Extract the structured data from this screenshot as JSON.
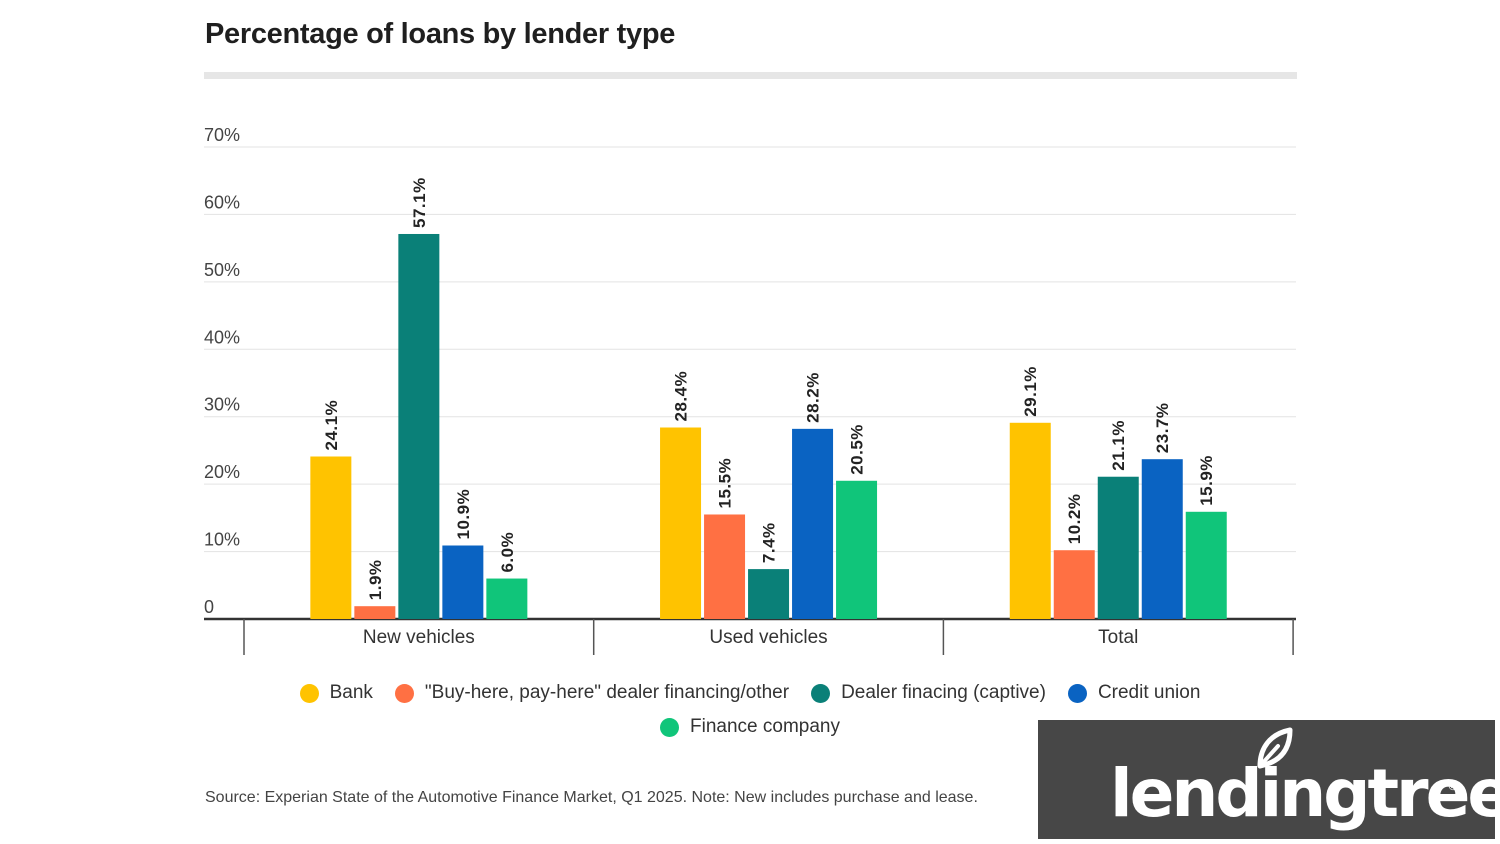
{
  "title": "Percentage of loans by lender type",
  "source": "Source: Experian State of the Automotive Finance Market, Q1 2025. Note: New includes purchase and lease.",
  "logo": {
    "text": "lendingtree",
    "mark": "®"
  },
  "chart_data": {
    "type": "bar",
    "title": "Percentage of loans by lender type",
    "categories": [
      "New vehicles",
      "Used vehicles",
      "Total"
    ],
    "series": [
      {
        "name": "Bank",
        "color": "#FFC300",
        "values": [
          24.1,
          28.4,
          29.1
        ]
      },
      {
        "name": "\"Buy-here, pay-here\" dealer financing/other",
        "color": "#FF7043",
        "values": [
          1.9,
          15.5,
          10.2
        ]
      },
      {
        "name": "Dealer finacing (captive)",
        "color": "#0A8078",
        "values": [
          57.1,
          7.4,
          21.1
        ]
      },
      {
        "name": "Credit union",
        "color": "#0A63C2",
        "values": [
          10.9,
          28.2,
          23.7
        ]
      },
      {
        "name": "Finance company",
        "color": "#10C57A",
        "values": [
          6.0,
          20.5,
          15.9
        ]
      }
    ],
    "value_suffix": "%",
    "ylim": [
      0,
      70
    ],
    "yticks": [
      0,
      10,
      20,
      30,
      40,
      50,
      60,
      70
    ],
    "ytick_labels": [
      "0",
      "10%",
      "20%",
      "30%",
      "40%",
      "50%",
      "60%",
      "70%"
    ],
    "xlabel": "",
    "ylabel": "",
    "grid": true,
    "legend_position": "bottom"
  }
}
